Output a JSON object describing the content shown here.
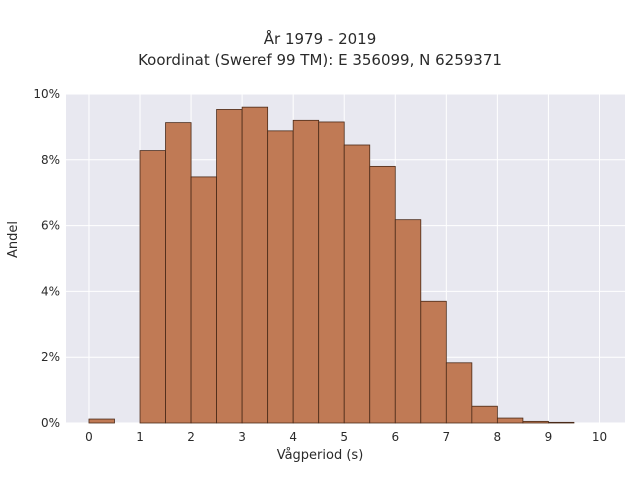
{
  "chart_data": {
    "type": "bar",
    "title": [
      "År 1979 - 2019",
      "Koordinat (Sweref 99 TM): E 356099, N 6259371"
    ],
    "xlabel": "Vågperiod (s)",
    "ylabel": "Andel",
    "bin_width": 0.5,
    "bin_starts": [
      0,
      0.5,
      1,
      1.5,
      2,
      2.5,
      3,
      3.5,
      4,
      4.5,
      5,
      5.5,
      6,
      6.5,
      7,
      7.5,
      8,
      8.5,
      9,
      9.5
    ],
    "values": [
      0.12,
      0,
      8.28,
      9.13,
      7.48,
      9.53,
      9.6,
      8.88,
      9.2,
      9.15,
      8.45,
      7.8,
      6.18,
      3.7,
      1.83,
      0.51,
      0.15,
      0.05,
      0.02,
      0
    ],
    "xlim": [
      -0.45,
      10.5
    ],
    "ylim": [
      0,
      10
    ],
    "xticks": [
      "0",
      "1",
      "2",
      "3",
      "4",
      "5",
      "6",
      "7",
      "8",
      "9",
      "10"
    ],
    "yticks": [
      "0%",
      "2%",
      "4%",
      "6%",
      "8%",
      "10%"
    ],
    "grid": true,
    "bar_color": "#c07a55",
    "bar_edge_color": "#4a2a18",
    "plot_background": "#e8e8f0",
    "grid_color": "#ffffff"
  }
}
